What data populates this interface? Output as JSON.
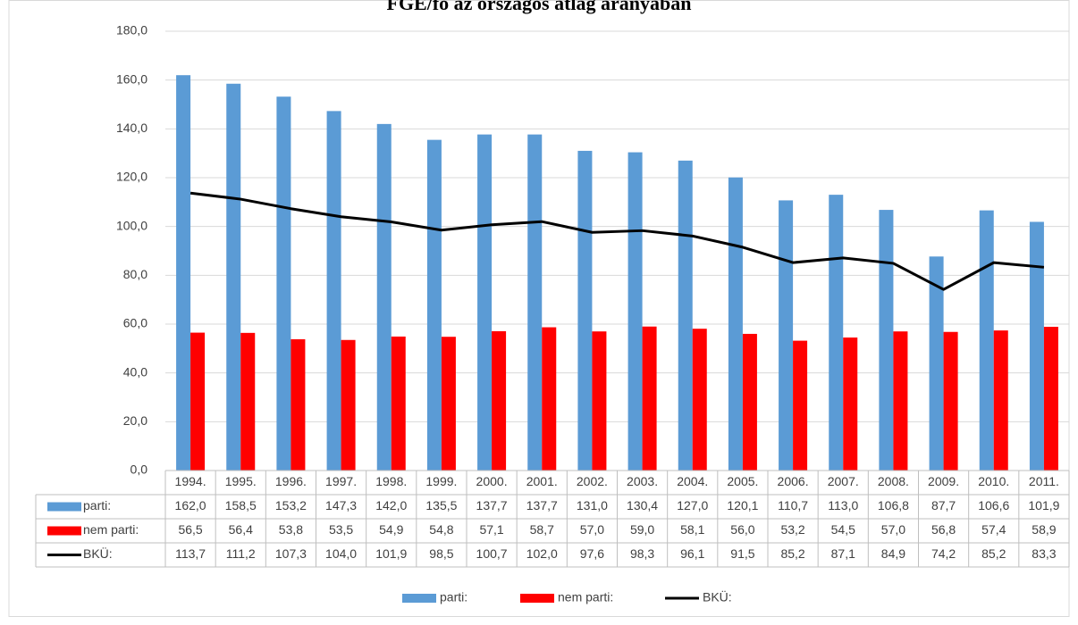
{
  "chart_data": {
    "type": "bar",
    "title": "FGE/fő az országos átlag arányában",
    "categories": [
      "1994.",
      "1995.",
      "1996.",
      "1997.",
      "1998.",
      "1999.",
      "2000.",
      "2001.",
      "2002.",
      "2003.",
      "2004.",
      "2005.",
      "2006.",
      "2007.",
      "2008.",
      "2009.",
      "2010.",
      "2011."
    ],
    "series": [
      {
        "name": "parti:",
        "type": "bar",
        "color": "#5b9bd5",
        "values": [
          162.0,
          158.5,
          153.2,
          147.3,
          142.0,
          135.5,
          137.7,
          137.7,
          131.0,
          130.4,
          127.0,
          120.1,
          110.7,
          113.0,
          106.8,
          87.7,
          106.6,
          101.9
        ],
        "value_labels": [
          "162,0",
          "158,5",
          "153,2",
          "147,3",
          "142,0",
          "135,5",
          "137,7",
          "137,7",
          "131,0",
          "130,4",
          "127,0",
          "120,1",
          "110,7",
          "113,0",
          "106,8",
          "87,7",
          "106,6",
          "101,9"
        ]
      },
      {
        "name": "nem parti:",
        "type": "bar",
        "color": "#ff0000",
        "values": [
          56.5,
          56.4,
          53.8,
          53.5,
          54.9,
          54.8,
          57.1,
          58.7,
          57.0,
          59.0,
          58.1,
          56.0,
          53.2,
          54.5,
          57.0,
          56.8,
          57.4,
          58.9
        ],
        "value_labels": [
          "56,5",
          "56,4",
          "53,8",
          "53,5",
          "54,9",
          "54,8",
          "57,1",
          "58,7",
          "57,0",
          "59,0",
          "58,1",
          "56,0",
          "53,2",
          "54,5",
          "57,0",
          "56,8",
          "57,4",
          "58,9"
        ]
      },
      {
        "name": "BKÜ:",
        "type": "line",
        "color": "#000000",
        "values": [
          113.7,
          111.2,
          107.3,
          104.0,
          101.9,
          98.5,
          100.7,
          102.0,
          97.6,
          98.3,
          96.1,
          91.5,
          85.2,
          87.1,
          84.9,
          74.2,
          85.2,
          83.3
        ],
        "value_labels": [
          "113,7",
          "111,2",
          "107,3",
          "104,0",
          "101,9",
          "98,5",
          "100,7",
          "102,0",
          "97,6",
          "98,3",
          "96,1",
          "91,5",
          "85,2",
          "87,1",
          "84,9",
          "74,2",
          "85,2",
          "83,3"
        ]
      }
    ],
    "ylim": [
      0,
      180
    ],
    "yticks": [
      {
        "value": 0,
        "label": "0,0"
      },
      {
        "value": 20,
        "label": "20,0"
      },
      {
        "value": 40,
        "label": "40,0"
      },
      {
        "value": 60,
        "label": "60,0"
      },
      {
        "value": 80,
        "label": "80,0"
      },
      {
        "value": 100,
        "label": "100,0"
      },
      {
        "value": 120,
        "label": "120,0"
      },
      {
        "value": 140,
        "label": "140,0"
      },
      {
        "value": 160,
        "label": "160,0"
      },
      {
        "value": 180,
        "label": "180,0"
      }
    ],
    "grid": true,
    "legend": "bottom"
  }
}
